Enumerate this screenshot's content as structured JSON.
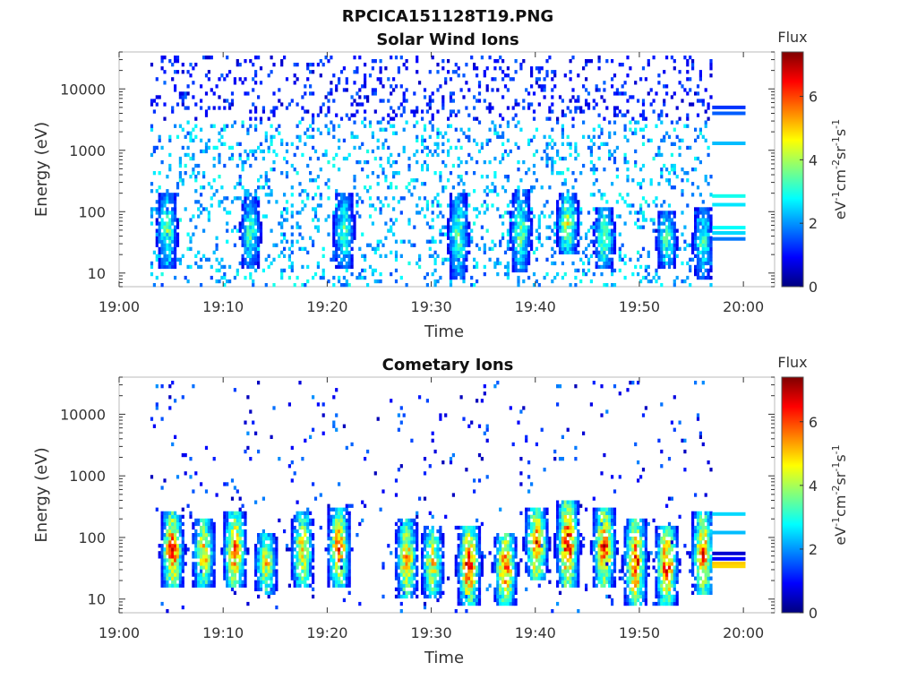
{
  "figure": {
    "title": "RPCICA151128T19.PNG"
  },
  "colormap": [
    "#00007f",
    "#0000ff",
    "#007fff",
    "#00ffff",
    "#7fff7f",
    "#ffff00",
    "#ff7f00",
    "#ff0000",
    "#7f0000"
  ],
  "chart_data": [
    {
      "type": "heatmap",
      "title": "Solar Wind Ions",
      "xlabel": "Time",
      "ylabel": "Energy (eV)",
      "y_scale": "log",
      "xlim": [
        "19:00",
        "20:03"
      ],
      "ylim": [
        6,
        40000
      ],
      "x_ticks": [
        "19:00",
        "19:10",
        "19:20",
        "19:30",
        "19:40",
        "19:50",
        "20:00"
      ],
      "y_ticks": [
        "10",
        "100",
        "1000",
        "10000"
      ],
      "colorbar": {
        "title": "Flux",
        "label": "eV-1cm-2sr-1s-1",
        "range": [
          0,
          7.4
        ],
        "ticks": [
          "0",
          "2",
          "4",
          "6"
        ]
      },
      "data_time_range": [
        "19:03",
        "19:57"
      ],
      "peaks": [
        {
          "t": 4.5,
          "lo": 12,
          "hi": 200,
          "v": 3.5
        },
        {
          "t": 12.5,
          "lo": 12,
          "hi": 180,
          "v": 3.3
        },
        {
          "t": 21.5,
          "lo": 12,
          "hi": 190,
          "v": 3.5
        },
        {
          "t": 32.5,
          "lo": 8,
          "hi": 200,
          "v": 3.4
        },
        {
          "t": 38.5,
          "lo": 10,
          "hi": 220,
          "v": 3.6
        },
        {
          "t": 43,
          "lo": 20,
          "hi": 200,
          "v": 4.4
        },
        {
          "t": 46.5,
          "lo": 12,
          "hi": 120,
          "v": 3.8
        },
        {
          "t": 52.5,
          "lo": 12,
          "hi": 100,
          "v": 3.4
        },
        {
          "t": 56,
          "lo": 8,
          "hi": 120,
          "v": 3.2
        }
      ],
      "end_bands": [
        {
          "e": 5000,
          "v": 1.3
        },
        {
          "e": 4000,
          "v": 1.6
        },
        {
          "e": 1300,
          "v": 2.3
        },
        {
          "e": 180,
          "v": 2.9
        },
        {
          "e": 130,
          "v": 2.6
        },
        {
          "e": 55,
          "v": 2.8
        },
        {
          "e": 45,
          "v": 2.5
        },
        {
          "e": 36,
          "v": 1.8
        }
      ],
      "seed": 11
    },
    {
      "type": "heatmap",
      "title": "Cometary Ions",
      "xlabel": "Time",
      "ylabel": "Energy (eV)",
      "y_scale": "log",
      "xlim": [
        "19:00",
        "20:03"
      ],
      "ylim": [
        6,
        40000
      ],
      "x_ticks": [
        "19:00",
        "19:10",
        "19:20",
        "19:30",
        "19:40",
        "19:50",
        "20:00"
      ],
      "y_ticks": [
        "10",
        "100",
        "1000",
        "10000"
      ],
      "colorbar": {
        "title": "Flux",
        "label": "eV-1cm-2sr-1s-1",
        "range": [
          0,
          7.4
        ],
        "ticks": [
          "0",
          "2",
          "4",
          "6"
        ]
      },
      "data_time_range": [
        "19:03",
        "19:57"
      ],
      "peaks": [
        {
          "t": 5,
          "lo": 15,
          "hi": 250,
          "v": 6.2
        },
        {
          "t": 8,
          "lo": 15,
          "hi": 200,
          "v": 5.2
        },
        {
          "t": 11,
          "lo": 15,
          "hi": 250,
          "v": 5.8
        },
        {
          "t": 14,
          "lo": 12,
          "hi": 120,
          "v": 4.8
        },
        {
          "t": 17.5,
          "lo": 15,
          "hi": 250,
          "v": 5.0
        },
        {
          "t": 21,
          "lo": 15,
          "hi": 300,
          "v": 5.6
        },
        {
          "t": 27.5,
          "lo": 10,
          "hi": 200,
          "v": 5.2
        },
        {
          "t": 30,
          "lo": 10,
          "hi": 150,
          "v": 4.8
        },
        {
          "t": 33.5,
          "lo": 8,
          "hi": 150,
          "v": 6.3
        },
        {
          "t": 37,
          "lo": 8,
          "hi": 120,
          "v": 6.0
        },
        {
          "t": 40,
          "lo": 20,
          "hi": 300,
          "v": 6.2
        },
        {
          "t": 43,
          "lo": 15,
          "hi": 400,
          "v": 6.4
        },
        {
          "t": 46.5,
          "lo": 15,
          "hi": 300,
          "v": 6.0
        },
        {
          "t": 49.5,
          "lo": 8,
          "hi": 200,
          "v": 6.2
        },
        {
          "t": 52.5,
          "lo": 8,
          "hi": 150,
          "v": 6.2
        },
        {
          "t": 56,
          "lo": 12,
          "hi": 250,
          "v": 5.8
        }
      ],
      "end_bands": [
        {
          "e": 240,
          "v": 2.5
        },
        {
          "e": 120,
          "v": 2.3
        },
        {
          "e": 55,
          "v": 0.6
        },
        {
          "e": 45,
          "v": 0.9
        },
        {
          "e": 38,
          "v": 5.0
        },
        {
          "e": 34,
          "v": 4.9
        }
      ],
      "seed": 29
    }
  ]
}
